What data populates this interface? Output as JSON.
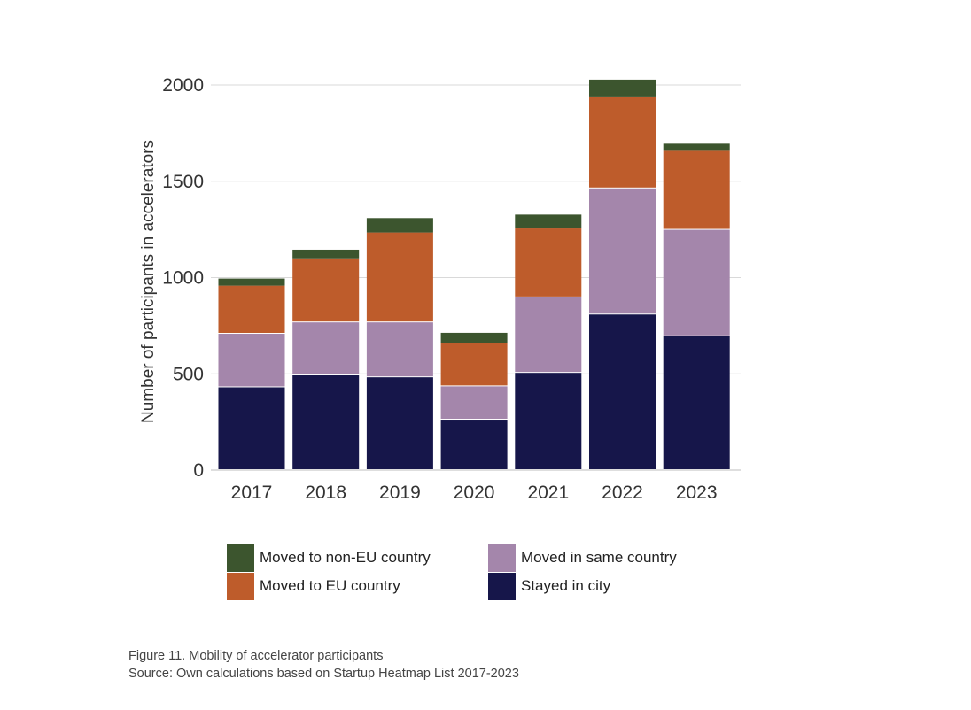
{
  "chart_data": {
    "type": "bar",
    "stacked": true,
    "categories": [
      "2017",
      "2018",
      "2019",
      "2020",
      "2021",
      "2022",
      "2023"
    ],
    "series": [
      {
        "name": "Stayed in city",
        "color": "#16164a",
        "values": [
          430,
          492,
          482,
          262,
          505,
          808,
          695
        ]
      },
      {
        "name": "Moved in same country",
        "color": "#a486ab",
        "values": [
          278,
          275,
          285,
          173,
          392,
          655,
          553
        ]
      },
      {
        "name": "Moved to EU country",
        "color": "#be5c2b",
        "values": [
          250,
          333,
          467,
          223,
          358,
          473,
          410
        ]
      },
      {
        "name": "Moved to non-EU country",
        "color": "#3c552e",
        "values": [
          37,
          45,
          75,
          55,
          72,
          92,
          37
        ]
      }
    ],
    "xlabel": "",
    "ylabel": "Number of participants in accelerators",
    "ylim": [
      0,
      2000
    ],
    "yticks": [
      0,
      500,
      1000,
      1500,
      2000
    ],
    "grid": true,
    "legend_position": "bottom"
  },
  "legend": {
    "items": [
      {
        "label": "Moved to non-EU country",
        "color": "#3c552e"
      },
      {
        "label": "Moved to EU country",
        "color": "#be5c2b"
      },
      {
        "label": "Moved in same country",
        "color": "#a486ab"
      },
      {
        "label": "Stayed in city",
        "color": "#16164a"
      }
    ]
  },
  "caption": {
    "line1": "Figure 11. Mobility of accelerator participants",
    "line2": "Source: Own calculations based on Startup Heatmap List 2017-2023"
  }
}
